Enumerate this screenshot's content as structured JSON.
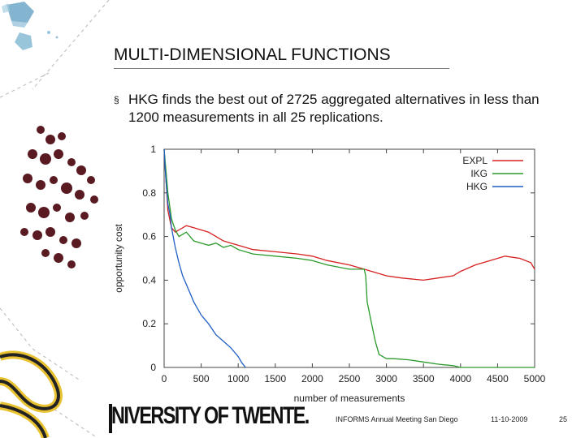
{
  "slide": {
    "title": "MULTI-DIMENSIONAL FUNCTIONS",
    "bullet_marker": "§",
    "bullet_text": "HKG finds the best out of 2725 aggregated alternatives in less than 1200 measurements in all 25 replications."
  },
  "footer": {
    "logo_text": "NIVERSITY OF TWENTE.",
    "event": "INFORMS Annual Meeting San Diego",
    "date": "11-10-2009",
    "page": "25"
  },
  "colors": {
    "expl": "#d62020",
    "ikg": "#2a9a2a",
    "hkg": "#1f5fc4"
  },
  "chart_data": {
    "type": "line",
    "xlabel": "number of measurements",
    "ylabel": "opportunity cost",
    "xlim": [
      0,
      5000
    ],
    "ylim": [
      0,
      1
    ],
    "xticks": [
      0,
      500,
      1000,
      1500,
      2000,
      2500,
      3000,
      3500,
      4000,
      4500,
      5000
    ],
    "yticks": [
      0,
      0.2,
      0.4,
      0.6,
      0.8,
      1
    ],
    "ytick_labels": [
      "0",
      "0.2",
      "0.4",
      "0.6",
      "0.8",
      "1"
    ],
    "grid": false,
    "legend_position": "top-right",
    "series": [
      {
        "name": "EXPL",
        "color": "#d62020",
        "x": [
          0,
          50,
          100,
          150,
          200,
          300,
          400,
          500,
          600,
          700,
          800,
          900,
          1000,
          1200,
          1500,
          1800,
          2000,
          2200,
          2500,
          2700,
          3000,
          3200,
          3500,
          3700,
          3900,
          4000,
          4200,
          4400,
          4600,
          4800,
          4950,
          5000
        ],
        "y": [
          1.0,
          0.72,
          0.64,
          0.62,
          0.63,
          0.65,
          0.64,
          0.63,
          0.62,
          0.6,
          0.58,
          0.57,
          0.56,
          0.54,
          0.53,
          0.52,
          0.51,
          0.49,
          0.47,
          0.45,
          0.42,
          0.41,
          0.4,
          0.41,
          0.42,
          0.44,
          0.47,
          0.49,
          0.51,
          0.5,
          0.48,
          0.45
        ]
      },
      {
        "name": "IKG",
        "color": "#2a9a2a",
        "x": [
          0,
          50,
          100,
          150,
          200,
          300,
          400,
          500,
          600,
          700,
          800,
          900,
          1000,
          1200,
          1500,
          1800,
          2000,
          2200,
          2500,
          2700,
          2720,
          2740,
          2800,
          2850,
          2900,
          3000,
          3100,
          3300,
          3500,
          3700,
          3900,
          4000,
          5000
        ],
        "y": [
          1.0,
          0.8,
          0.68,
          0.63,
          0.6,
          0.62,
          0.58,
          0.57,
          0.56,
          0.57,
          0.55,
          0.56,
          0.54,
          0.52,
          0.51,
          0.5,
          0.49,
          0.47,
          0.45,
          0.45,
          0.42,
          0.3,
          0.2,
          0.12,
          0.06,
          0.04,
          0.04,
          0.035,
          0.025,
          0.015,
          0.008,
          0.0,
          0.0
        ]
      },
      {
        "name": "HKG",
        "color": "#1f5fc4",
        "x": [
          0,
          20,
          50,
          80,
          100,
          150,
          200,
          250,
          300,
          400,
          500,
          600,
          700,
          800,
          900,
          1000,
          1050,
          1100
        ],
        "y": [
          1.0,
          0.88,
          0.75,
          0.7,
          0.64,
          0.55,
          0.48,
          0.42,
          0.38,
          0.3,
          0.24,
          0.2,
          0.15,
          0.12,
          0.09,
          0.05,
          0.02,
          0.0
        ]
      }
    ]
  }
}
